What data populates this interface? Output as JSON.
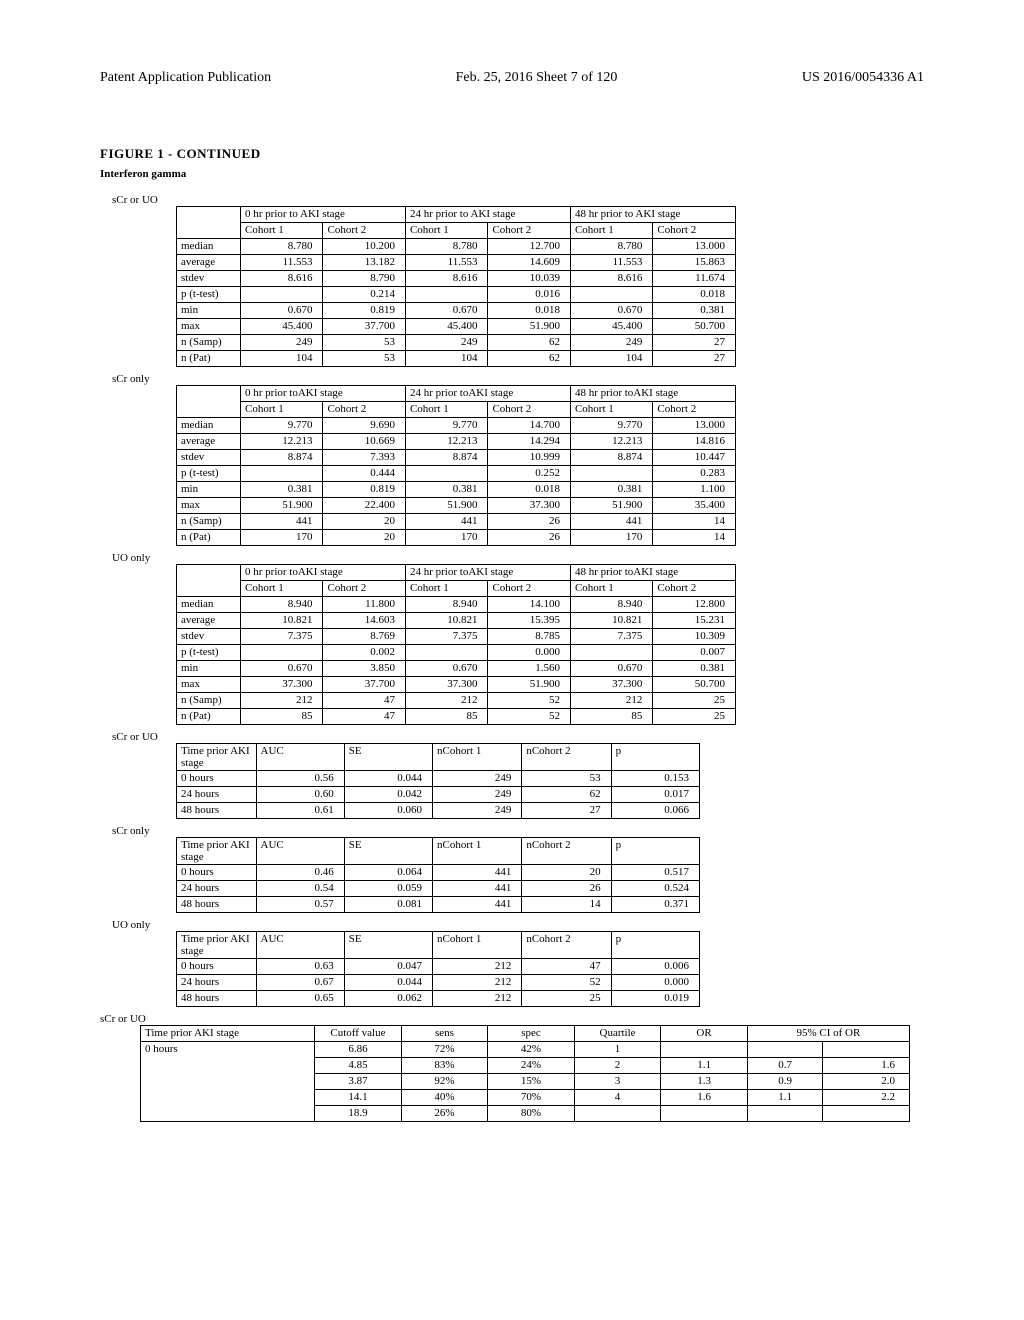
{
  "header": {
    "left": "Patent Application Publication",
    "center": "Feb. 25, 2016  Sheet 7 of 120",
    "right": "US 2016/0054336 A1"
  },
  "figure_title": "FIGURE 1 - CONTINUED",
  "biomarker": "Interferon gamma",
  "labels": {
    "scr_or_uo": "sCr or UO",
    "scr_only": "sCr only",
    "uo_only": "UO only"
  },
  "stats_headers": {
    "h0": "0 hr prior to AKI stage",
    "h0s": "0 hr prior toAKI stage",
    "h24": "24 hr prior to AKI stage",
    "h24s": "24 hr prior toAKI stage",
    "h48": "48 hr prior to AKI stage",
    "h48s": "48 hr prior toAKI stage",
    "c1": "Cohort 1",
    "c2": "Cohort 2"
  },
  "row_labels": {
    "median": "median",
    "average": "average",
    "stdev": "stdev",
    "p_ttest": "p (t-test)",
    "min": "min",
    "max": "max",
    "n_samp": "n (Samp)",
    "n_pat": "n (Pat)"
  },
  "stats1": {
    "median": [
      "8.780",
      "10.200",
      "8.780",
      "12.700",
      "8.780",
      "13.000"
    ],
    "average": [
      "11.553",
      "13.182",
      "11.553",
      "14.609",
      "11.553",
      "15.863"
    ],
    "stdev": [
      "8.616",
      "8.790",
      "8.616",
      "10.039",
      "8.616",
      "11.674"
    ],
    "p_ttest": [
      "",
      "0.214",
      "",
      "0.016",
      "",
      "0.018"
    ],
    "min": [
      "0.670",
      "0.819",
      "0.670",
      "0.018",
      "0.670",
      "0.381"
    ],
    "max": [
      "45.400",
      "37.700",
      "45.400",
      "51.900",
      "45.400",
      "50.700"
    ],
    "n_samp": [
      "249",
      "53",
      "249",
      "62",
      "249",
      "27"
    ],
    "n_pat": [
      "104",
      "53",
      "104",
      "62",
      "104",
      "27"
    ]
  },
  "stats2": {
    "median": [
      "9.770",
      "9.690",
      "9.770",
      "14.700",
      "9.770",
      "13.000"
    ],
    "average": [
      "12.213",
      "10.669",
      "12.213",
      "14.294",
      "12.213",
      "14.816"
    ],
    "stdev": [
      "8.874",
      "7.393",
      "8.874",
      "10.999",
      "8.874",
      "10.447"
    ],
    "p_ttest": [
      "",
      "0.444",
      "",
      "0.252",
      "",
      "0.283"
    ],
    "min": [
      "0.381",
      "0.819",
      "0.381",
      "0.018",
      "0.381",
      "1.100"
    ],
    "max": [
      "51.900",
      "22.400",
      "51.900",
      "37.300",
      "51.900",
      "35.400"
    ],
    "n_samp": [
      "441",
      "20",
      "441",
      "26",
      "441",
      "14"
    ],
    "n_pat": [
      "170",
      "20",
      "170",
      "26",
      "170",
      "14"
    ]
  },
  "stats3": {
    "median": [
      "8.940",
      "11.800",
      "8.940",
      "14.100",
      "8.940",
      "12.800"
    ],
    "average": [
      "10.821",
      "14.603",
      "10.821",
      "15.395",
      "10.821",
      "15.231"
    ],
    "stdev": [
      "7.375",
      "8.769",
      "7.375",
      "8.785",
      "7.375",
      "10.309"
    ],
    "p_ttest": [
      "",
      "0.002",
      "",
      "0.000",
      "",
      "0.007"
    ],
    "min": [
      "0.670",
      "3.850",
      "0.670",
      "1.560",
      "0.670",
      "0.381"
    ],
    "max": [
      "37.300",
      "37.700",
      "37.300",
      "51.900",
      "37.300",
      "50.700"
    ],
    "n_samp": [
      "212",
      "47",
      "212",
      "52",
      "212",
      "25"
    ],
    "n_pat": [
      "85",
      "47",
      "85",
      "52",
      "85",
      "25"
    ]
  },
  "auc_headers": {
    "time_prior": "Time prior AKI stage",
    "auc": "AUC",
    "se": "SE",
    "nc1": "nCohort 1",
    "nc2": "nCohort 2",
    "p": "p",
    "h0": "0 hours",
    "h24": "24 hours",
    "h48": "48 hours"
  },
  "auc1": {
    "r0": [
      "0.56",
      "0.044",
      "249",
      "53",
      "0.153"
    ],
    "r24": [
      "0.60",
      "0.042",
      "249",
      "62",
      "0.017"
    ],
    "r48": [
      "0.61",
      "0.060",
      "249",
      "27",
      "0.066"
    ]
  },
  "auc2": {
    "r0": [
      "0.46",
      "0.064",
      "441",
      "20",
      "0.517"
    ],
    "r24": [
      "0.54",
      "0.059",
      "441",
      "26",
      "0.524"
    ],
    "r48": [
      "0.57",
      "0.081",
      "441",
      "14",
      "0.371"
    ]
  },
  "auc3": {
    "r0": [
      "0.63",
      "0.047",
      "212",
      "47",
      "0.006"
    ],
    "r24": [
      "0.67",
      "0.044",
      "212",
      "52",
      "0.000"
    ],
    "r48": [
      "0.65",
      "0.062",
      "212",
      "25",
      "0.019"
    ]
  },
  "or_headers": {
    "time_prior": "Time prior AKI stage",
    "cutoff": "Cutoff value",
    "sens": "sens",
    "spec": "spec",
    "quartile": "Quartile",
    "or": "OR",
    "ci": "95% CI of OR",
    "h0": "0 hours"
  },
  "or_rows": {
    "r1": [
      "6.86",
      "72%",
      "42%",
      "1",
      "",
      "",
      ""
    ],
    "r2": [
      "4.85",
      "83%",
      "24%",
      "2",
      "1.1",
      "0.7",
      "1.6"
    ],
    "r3": [
      "3.87",
      "92%",
      "15%",
      "3",
      "1.3",
      "0.9",
      "2.0"
    ],
    "r4": [
      "14.1",
      "40%",
      "70%",
      "4",
      "1.6",
      "1.1",
      "2.2"
    ],
    "r5": [
      "18.9",
      "26%",
      "80%",
      "",
      "",
      "",
      ""
    ]
  }
}
